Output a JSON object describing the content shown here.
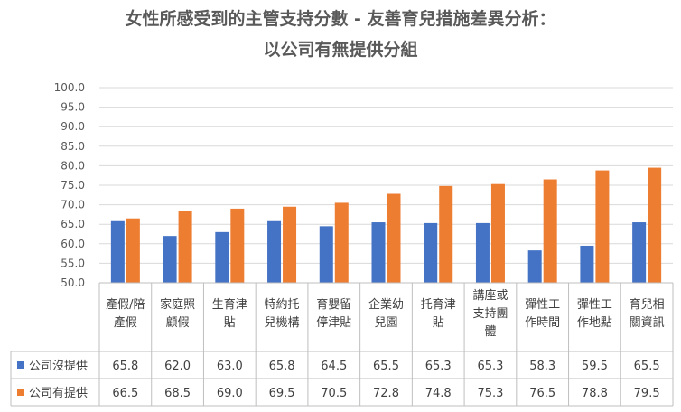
{
  "chart_data": {
    "type": "bar",
    "title_line1": "女性所感受到的主管支持分數 - 友善育兒措施差異分析：",
    "title_line2": "以公司有無提供分組",
    "ylim": [
      50,
      100
    ],
    "yticks": [
      "50.0",
      "55.0",
      "60.0",
      "65.0",
      "70.0",
      "75.0",
      "80.0",
      "85.0",
      "90.0",
      "95.0",
      "100.0"
    ],
    "categories": [
      [
        "產假/陪",
        "產假"
      ],
      [
        "家庭照",
        "顧假"
      ],
      [
        "生育津",
        "貼"
      ],
      [
        "特約托",
        "兒機構"
      ],
      [
        "育嬰留",
        "停津貼"
      ],
      [
        "企業幼",
        "兒園"
      ],
      [
        "托育津",
        "貼"
      ],
      [
        "講座或",
        "支持團",
        "體"
      ],
      [
        "彈性工",
        "作時間"
      ],
      [
        "彈性工",
        "作地點"
      ],
      [
        "育兒相",
        "關資訊"
      ]
    ],
    "series": [
      {
        "name": "公司沒提供",
        "color": "#4472C4",
        "values": [
          65.8,
          62.0,
          63.0,
          65.8,
          64.5,
          65.5,
          65.3,
          65.3,
          58.3,
          59.5,
          65.5
        ]
      },
      {
        "name": "公司有提供",
        "color": "#ED7D31",
        "values": [
          66.5,
          68.5,
          69.0,
          69.5,
          70.5,
          72.8,
          74.8,
          75.3,
          76.5,
          78.8,
          79.5
        ]
      }
    ],
    "grid": true
  }
}
